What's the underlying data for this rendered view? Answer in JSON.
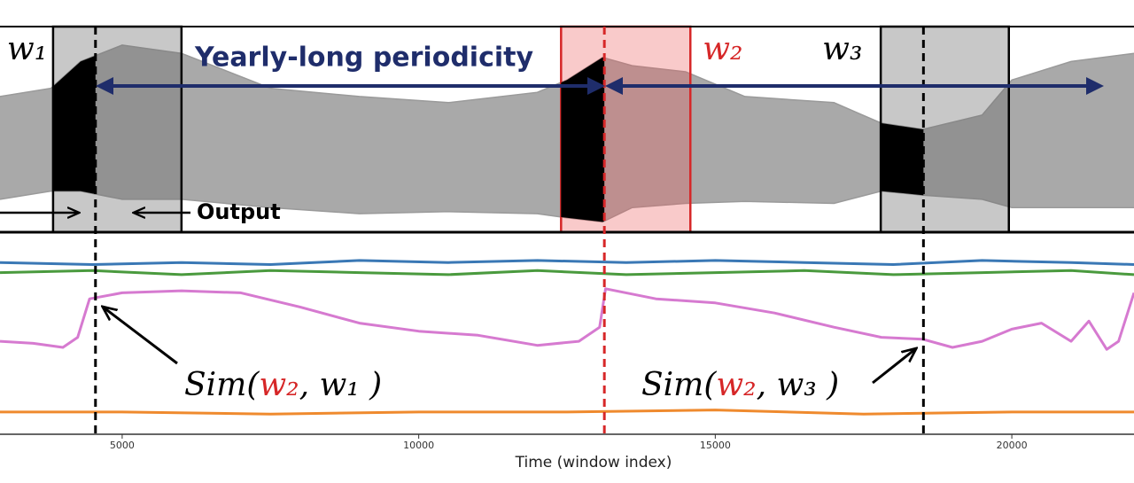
{
  "chart_data": [
    {
      "type": "band",
      "title": "Yearly-long periodicity",
      "xlim": [
        2940,
        22060
      ],
      "ylim": [
        0,
        1
      ],
      "color": "#9a9a9a",
      "x": [
        2940,
        3800,
        4300,
        5000,
        6000,
        7500,
        9000,
        10500,
        12000,
        12500,
        13100,
        13600,
        14500,
        15500,
        17000,
        17800,
        18500,
        19500,
        20000,
        21000,
        22060
      ],
      "series": [
        {
          "values": [
            0.66,
            0.7,
            0.83,
            0.91,
            0.87,
            0.7,
            0.66,
            0.63,
            0.68,
            0.74,
            0.85,
            0.81,
            0.78,
            0.66,
            0.63,
            0.53,
            0.5,
            0.57,
            0.74,
            0.83,
            0.87
          ]
        },
        {
          "values": [
            0.16,
            0.2,
            0.2,
            0.16,
            0.16,
            0.12,
            0.09,
            0.1,
            0.09,
            0.07,
            0.05,
            0.12,
            0.14,
            0.15,
            0.14,
            0.2,
            0.18,
            0.16,
            0.12,
            0.12,
            0.12
          ]
        }
      ],
      "windows": [
        {
          "label": "w₁",
          "color": "#000000",
          "start": 3835,
          "input_end": 4550,
          "end": 6000
        },
        {
          "label": "w₂",
          "color": "#d62728",
          "start": 12400,
          "input_end": 13130,
          "end": 14580
        },
        {
          "label": "w₃",
          "color": "#000000",
          "start": 17790,
          "input_end": 18510,
          "end": 19950
        }
      ],
      "annotation": "Output"
    },
    {
      "type": "line",
      "xlabel": "Time (window index)",
      "xlim": [
        2940,
        22060
      ],
      "ylim": [
        0,
        1
      ],
      "xticks": [
        5000,
        10000,
        15000,
        20000
      ],
      "series": [
        {
          "color": "#3a78b5",
          "x": [
            2940,
            4500,
            6000,
            7500,
            9000,
            10500,
            12000,
            13500,
            15000,
            16500,
            18000,
            19500,
            21000,
            22060
          ],
          "values": [
            0.85,
            0.84,
            0.85,
            0.84,
            0.86,
            0.85,
            0.86,
            0.85,
            0.86,
            0.85,
            0.84,
            0.86,
            0.85,
            0.84
          ]
        },
        {
          "color": "#4a9a3e",
          "x": [
            2940,
            4500,
            6000,
            7500,
            9000,
            10500,
            12000,
            13500,
            15000,
            16500,
            18000,
            19500,
            21000,
            22060
          ],
          "values": [
            0.8,
            0.81,
            0.79,
            0.81,
            0.8,
            0.79,
            0.81,
            0.79,
            0.8,
            0.81,
            0.79,
            0.8,
            0.81,
            0.79
          ]
        },
        {
          "color": "#d67ad0",
          "x": [
            2940,
            3500,
            4000,
            4250,
            4450,
            5000,
            6000,
            7000,
            8000,
            9000,
            10000,
            11000,
            12000,
            12700,
            13050,
            13150,
            14000,
            15000,
            16000,
            17000,
            17800,
            18500,
            19000,
            19500,
            20000,
            20500,
            21000,
            21300,
            21600,
            21800,
            22060
          ],
          "values": [
            0.46,
            0.45,
            0.43,
            0.48,
            0.67,
            0.7,
            0.71,
            0.7,
            0.63,
            0.55,
            0.51,
            0.49,
            0.44,
            0.46,
            0.53,
            0.72,
            0.67,
            0.65,
            0.6,
            0.53,
            0.48,
            0.47,
            0.43,
            0.46,
            0.52,
            0.55,
            0.46,
            0.56,
            0.42,
            0.46,
            0.7
          ]
        },
        {
          "color": "#ef8a2e",
          "x": [
            2940,
            5000,
            7500,
            10000,
            12500,
            15000,
            17500,
            20000,
            22060
          ],
          "values": [
            0.11,
            0.11,
            0.1,
            0.11,
            0.11,
            0.12,
            0.1,
            0.11,
            0.11
          ]
        }
      ],
      "annotations": [
        {
          "parts": [
            "Sim(",
            "w₂",
            ", w₁ )"
          ]
        },
        {
          "parts": [
            "Sim(",
            "w₂",
            ", w₃ )"
          ]
        }
      ]
    }
  ]
}
